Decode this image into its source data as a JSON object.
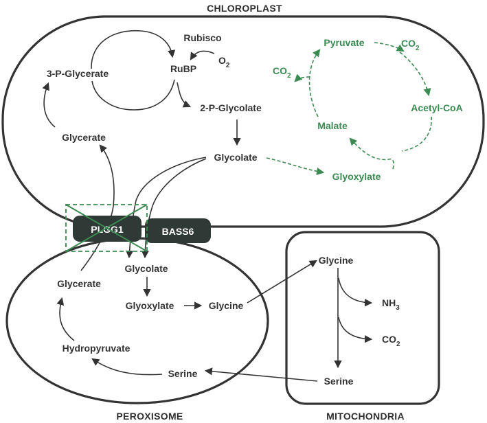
{
  "compartments": {
    "chloroplast": "CHLOROPLAST",
    "peroxisome": "PEROXISOME",
    "mitochondria": "MITOCHONDRIA"
  },
  "transporters": {
    "plgg1": "PLGG1",
    "bass6": "BASS6"
  },
  "chloroplast": {
    "rubisco": "Rubisco",
    "o2_main": "O",
    "o2_sub": "2",
    "rubp": "RuBP",
    "three_p_glycerate": "3-P-Glycerate",
    "two_p_glycolate": "2-P-Glycolate",
    "glycerate": "Glycerate",
    "glycolate": "Glycolate"
  },
  "bypass": {
    "pyruvate": "Pyruvate",
    "co2_right_main": "CO",
    "co2_right_sub": "2",
    "co2_left_main": "CO",
    "co2_left_sub": "2",
    "acetyl_coa": "Acetyl-CoA",
    "malate": "Malate",
    "glyoxylate": "Glyoxylate"
  },
  "peroxisome": {
    "glycerate": "Glycerate",
    "glycolate": "Glycolate",
    "glyoxylate": "Glyoxylate",
    "glycine": "Glycine",
    "hydropyruvate": "Hydropyruvate",
    "serine": "Serine"
  },
  "mitochondria": {
    "glycine": "Glycine",
    "nh3_main": "NH",
    "nh3_sub": "3",
    "co2_main": "CO",
    "co2_sub": "2",
    "serine": "Serine"
  },
  "colors": {
    "outline": "#333333",
    "bypass_green": "#3a8a52",
    "transporter_fill": "#2f3a36",
    "block_cross": "#3a8a52"
  }
}
